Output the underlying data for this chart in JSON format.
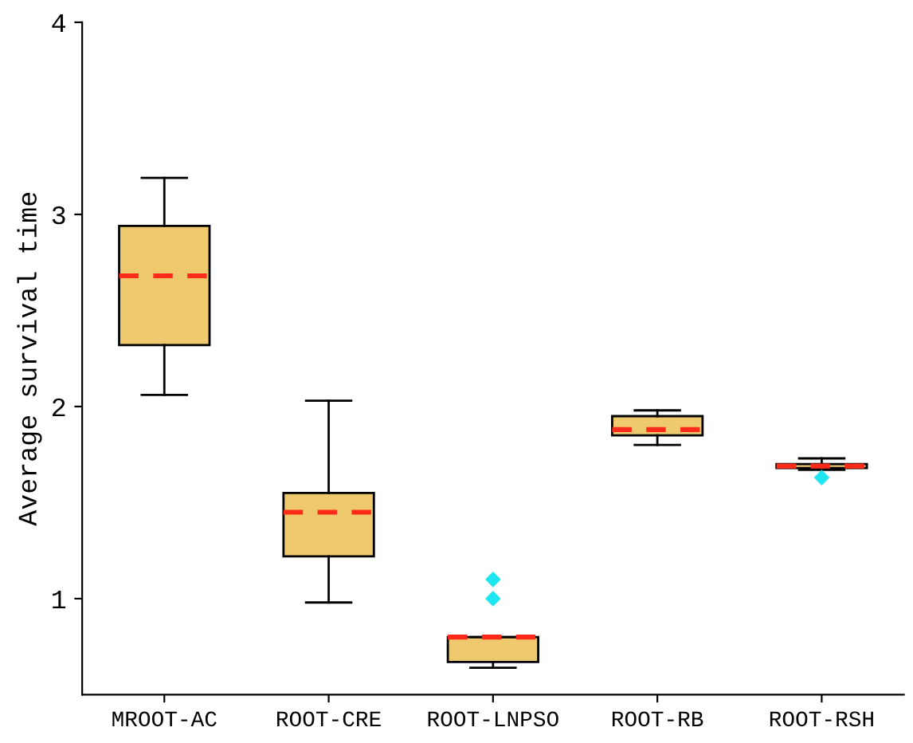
{
  "chart_data": {
    "type": "box",
    "ylabel": "Average survival time",
    "categories": [
      "MROOT-AC",
      "ROOT-CRE",
      "ROOT-LNPSO",
      "ROOT-RB",
      "ROOT-RSH"
    ],
    "color": "#efc96e",
    "boxes": [
      {
        "low": 2.06,
        "q1": 2.32,
        "median": 2.68,
        "q3": 2.94,
        "high": 3.19
      },
      {
        "low": 0.98,
        "q1": 1.22,
        "median": 1.45,
        "q3": 1.55,
        "high": 2.03
      },
      {
        "low": 0.64,
        "q1": 0.67,
        "median": 0.8,
        "q3": 0.8,
        "high": 0.8,
        "outliers": [
          1.1,
          1.0
        ]
      },
      {
        "low": 1.8,
        "q1": 1.85,
        "median": 1.88,
        "q3": 1.95,
        "high": 1.98
      },
      {
        "low": 1.67,
        "q1": 1.68,
        "median": 1.69,
        "q3": 1.7,
        "high": 1.73,
        "outliers": [
          1.63
        ]
      }
    ],
    "ylim": [
      0.5,
      4
    ],
    "yticks": [
      1,
      2,
      3,
      4
    ],
    "grid": false
  }
}
